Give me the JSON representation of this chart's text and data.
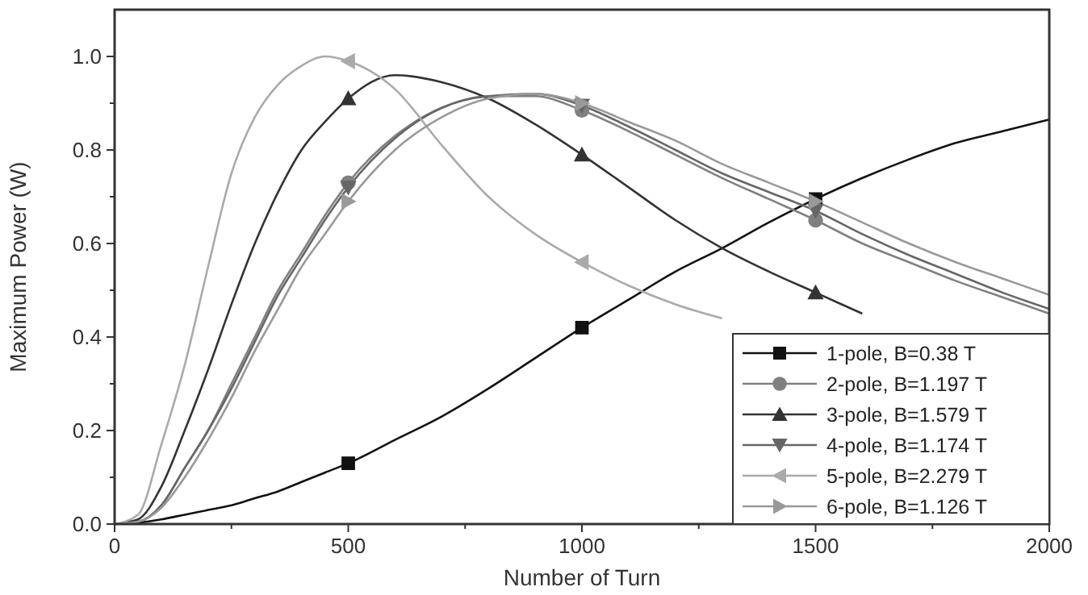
{
  "chart_data": {
    "type": "line",
    "xlabel": "Number of Turn",
    "ylabel": "Maximum Power (W)",
    "xlim": [
      0,
      2000
    ],
    "xticks": [
      0,
      {
        "value": 250,
        "label": null
      },
      500,
      {
        "value": 750,
        "label": null
      },
      1000,
      {
        "value": 1250,
        "label": null
      },
      1500,
      {
        "value": 1750,
        "label": null
      },
      2000
    ],
    "ylim": [
      0,
      1.1
    ],
    "yticks": [
      {
        "value": 0,
        "label": "0.0"
      },
      {
        "value": 0.1,
        "label": null
      },
      0.2,
      {
        "value": 0.3,
        "label": null
      },
      0.4,
      {
        "value": 0.5,
        "label": null
      },
      0.6,
      {
        "value": 0.7,
        "label": null
      },
      0.8,
      {
        "value": 0.9,
        "label": null
      },
      {
        "value": 1,
        "label": "1.0"
      }
    ],
    "grid": false,
    "legend": "bottom right",
    "line_style": "solid",
    "x": [
      0,
      50,
      100,
      150,
      200,
      250,
      300,
      350,
      400,
      450,
      500,
      600,
      700,
      800,
      900,
      1000,
      1100,
      1200,
      1300,
      1400,
      1500,
      1600,
      1700,
      1800,
      1900,
      2000
    ],
    "series": [
      {
        "color": "#111111",
        "values": [
          0,
          0.003,
          0.01,
          0.02,
          0.03,
          0.04,
          0.055,
          0.07,
          0.09,
          0.11,
          0.13,
          0.18,
          0.23,
          0.29,
          0.355,
          0.42,
          0.48,
          0.54,
          0.59,
          0.645,
          0.695,
          0.74,
          0.78,
          0.815,
          0.84,
          0.865
        ]
      },
      {
        "color": "#808080",
        "values": [
          0,
          0.005,
          0.04,
          0.12,
          0.2,
          0.3,
          0.4,
          0.5,
          0.58,
          0.66,
          0.73,
          0.83,
          0.89,
          0.915,
          0.915,
          0.885,
          0.84,
          0.79,
          0.74,
          0.695,
          0.65,
          0.6,
          0.56,
          0.52,
          0.485,
          0.45
        ]
      },
      {
        "color": "#333333",
        "values": [
          0,
          0.01,
          0.08,
          0.2,
          0.33,
          0.47,
          0.6,
          0.71,
          0.8,
          0.86,
          0.91,
          0.96,
          0.945,
          0.91,
          0.855,
          0.79,
          0.72,
          0.65,
          0.59,
          0.54,
          0.495,
          0.45,
          null,
          null,
          null,
          null
        ]
      },
      {
        "color": "#666666",
        "values": [
          0,
          0.005,
          0.04,
          0.12,
          0.2,
          0.29,
          0.39,
          0.49,
          0.57,
          0.65,
          0.72,
          0.825,
          0.89,
          0.915,
          0.92,
          0.895,
          0.85,
          0.8,
          0.75,
          0.71,
          0.67,
          0.62,
          0.575,
          0.535,
          0.495,
          0.46
        ]
      },
      {
        "color": "#aaaaaa",
        "values": [
          0,
          0.02,
          0.17,
          0.34,
          0.55,
          0.75,
          0.87,
          0.94,
          0.98,
          1.0,
          0.99,
          0.93,
          0.81,
          0.7,
          0.62,
          0.56,
          0.51,
          0.47,
          0.44,
          null,
          null,
          null,
          null,
          null,
          null,
          null
        ]
      },
      {
        "color": "#999999",
        "values": [
          0,
          0.005,
          0.035,
          0.1,
          0.18,
          0.27,
          0.37,
          0.46,
          0.55,
          0.62,
          0.69,
          0.8,
          0.87,
          0.91,
          0.92,
          0.9,
          0.86,
          0.82,
          0.77,
          0.73,
          0.69,
          0.645,
          0.6,
          0.56,
          0.525,
          0.49
        ]
      },
      {
        "type": "scatter",
        "name": "1-pole, B=0.38 T",
        "color": "#111111",
        "marker": "square",
        "x": [
          500,
          1000,
          1500
        ],
        "values": [
          0.13,
          0.42,
          0.695
        ]
      },
      {
        "type": "scatter",
        "name": "2-pole, B=1.197 T",
        "color": "#808080",
        "marker": "circle",
        "x": [
          500,
          1000,
          1500
        ],
        "values": [
          0.73,
          0.885,
          0.65
        ]
      },
      {
        "type": "scatter",
        "name": "3-pole, B=1.579 T",
        "color": "#333333",
        "marker": "triangle",
        "x": [
          500,
          1000,
          1500
        ],
        "values": [
          0.91,
          0.79,
          0.495
        ]
      },
      {
        "type": "scatter",
        "name": "4-pole, B=1.174 T",
        "color": "#666666",
        "marker": "triangle-down",
        "x": [
          500,
          1000,
          1500
        ],
        "values": [
          0.72,
          0.895,
          0.67
        ]
      },
      {
        "type": "scatter",
        "name": "5-pole, B=2.279 T",
        "color": "#aaaaaa",
        "marker": "triangle-left",
        "x": [
          500,
          1000
        ],
        "values": [
          0.99,
          0.56
        ]
      },
      {
        "type": "scatter",
        "name": "6-pole, B=1.126 T",
        "color": "#999999",
        "marker": "triangle-right",
        "x": [
          500,
          1000,
          1500
        ],
        "values": [
          0.69,
          0.9,
          0.69
        ]
      }
    ]
  }
}
